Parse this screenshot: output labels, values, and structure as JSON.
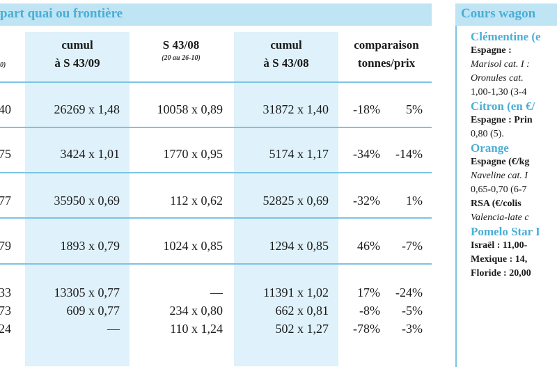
{
  "table": {
    "title": "part quai ou frontière",
    "columns": {
      "cumul1": [
        "cumul",
        "à S 43/09"
      ],
      "s4308": [
        "S 43/08",
        "(20 au 26-10)"
      ],
      "cumul2": [
        "cumul",
        "à S 43/08"
      ],
      "comp": [
        "comparaison",
        "tonnes/prix"
      ],
      "cut_sub": "0)"
    },
    "rows": [
      {
        "cut": "40",
        "cumul1": "26269 x 1,48",
        "s4308": "10058 x 0,89",
        "cumul2": "31872 x 1,40",
        "pct1": "-18%",
        "pct2": "5%"
      },
      {
        "cut": "75",
        "cumul1": "3424 x 1,01",
        "s4308": "1770 x 0,95",
        "cumul2": "5174 x 1,17",
        "pct1": "-34%",
        "pct2": "-14%"
      },
      {
        "cut": "77",
        "cumul1": "35950 x 0,69",
        "s4308": "112 x 0,62",
        "cumul2": "52825 x  0,69",
        "pct1": "-32%",
        "pct2": "1%"
      },
      {
        "cut": "79",
        "cumul1": "1893 x 0,79",
        "s4308": "1024 x 0,85",
        "cumul2": "1294 x 0,85",
        "pct1": "46%",
        "pct2": "-7%"
      }
    ],
    "group_rows": [
      {
        "cut": "33",
        "cumul1": "13305 x 0,77",
        "s4308": "—",
        "cumul2": "11391 x 1,02",
        "pct1": "17%",
        "pct2": "-24%"
      },
      {
        "cut": "73",
        "cumul1": "609 x 0,77",
        "s4308": "234 x 0,80",
        "cumul2": "662 x 0,81",
        "pct1": "-8%",
        "pct2": "-5%"
      },
      {
        "cut": "24",
        "cumul1": "—",
        "s4308": "110 x 1,24",
        "cumul2": "502 x 1,27",
        "pct1": "-78%",
        "pct2": "-3%"
      }
    ]
  },
  "side": {
    "title": "Cours wagon",
    "lines": [
      {
        "style": "blue",
        "text": "Clémentine (e"
      },
      {
        "style": "b",
        "text": "Espagne :"
      },
      {
        "style": "i",
        "text": "Marisol cat. I :"
      },
      {
        "style": "i",
        "text": "Oronules  cat."
      },
      {
        "style": "n",
        "text": "1,00-1,30 (3-4"
      },
      {
        "style": "blue",
        "text": "Citron (en €/"
      },
      {
        "style": "b",
        "text": "Espagne : Prin"
      },
      {
        "style": "n",
        "text": "0,80 (5)."
      },
      {
        "style": "blue",
        "text": "Orange"
      },
      {
        "style": "b",
        "text": "Espagne (€/kg"
      },
      {
        "style": "i",
        "text": "Naveline cat. I"
      },
      {
        "style": "n",
        "text": "0,65-0,70 (6-7"
      },
      {
        "style": "b",
        "text": "RSA (€/colis"
      },
      {
        "style": "i",
        "text": "Valencia-late c"
      },
      {
        "style": "blue",
        "text": "Pomelo Star I"
      },
      {
        "style": "b",
        "text": "Israël : 11,00-"
      },
      {
        "style": "b",
        "text": "Mexique : 14,"
      },
      {
        "style": "b",
        "text": "Floride : 20,00"
      }
    ]
  }
}
